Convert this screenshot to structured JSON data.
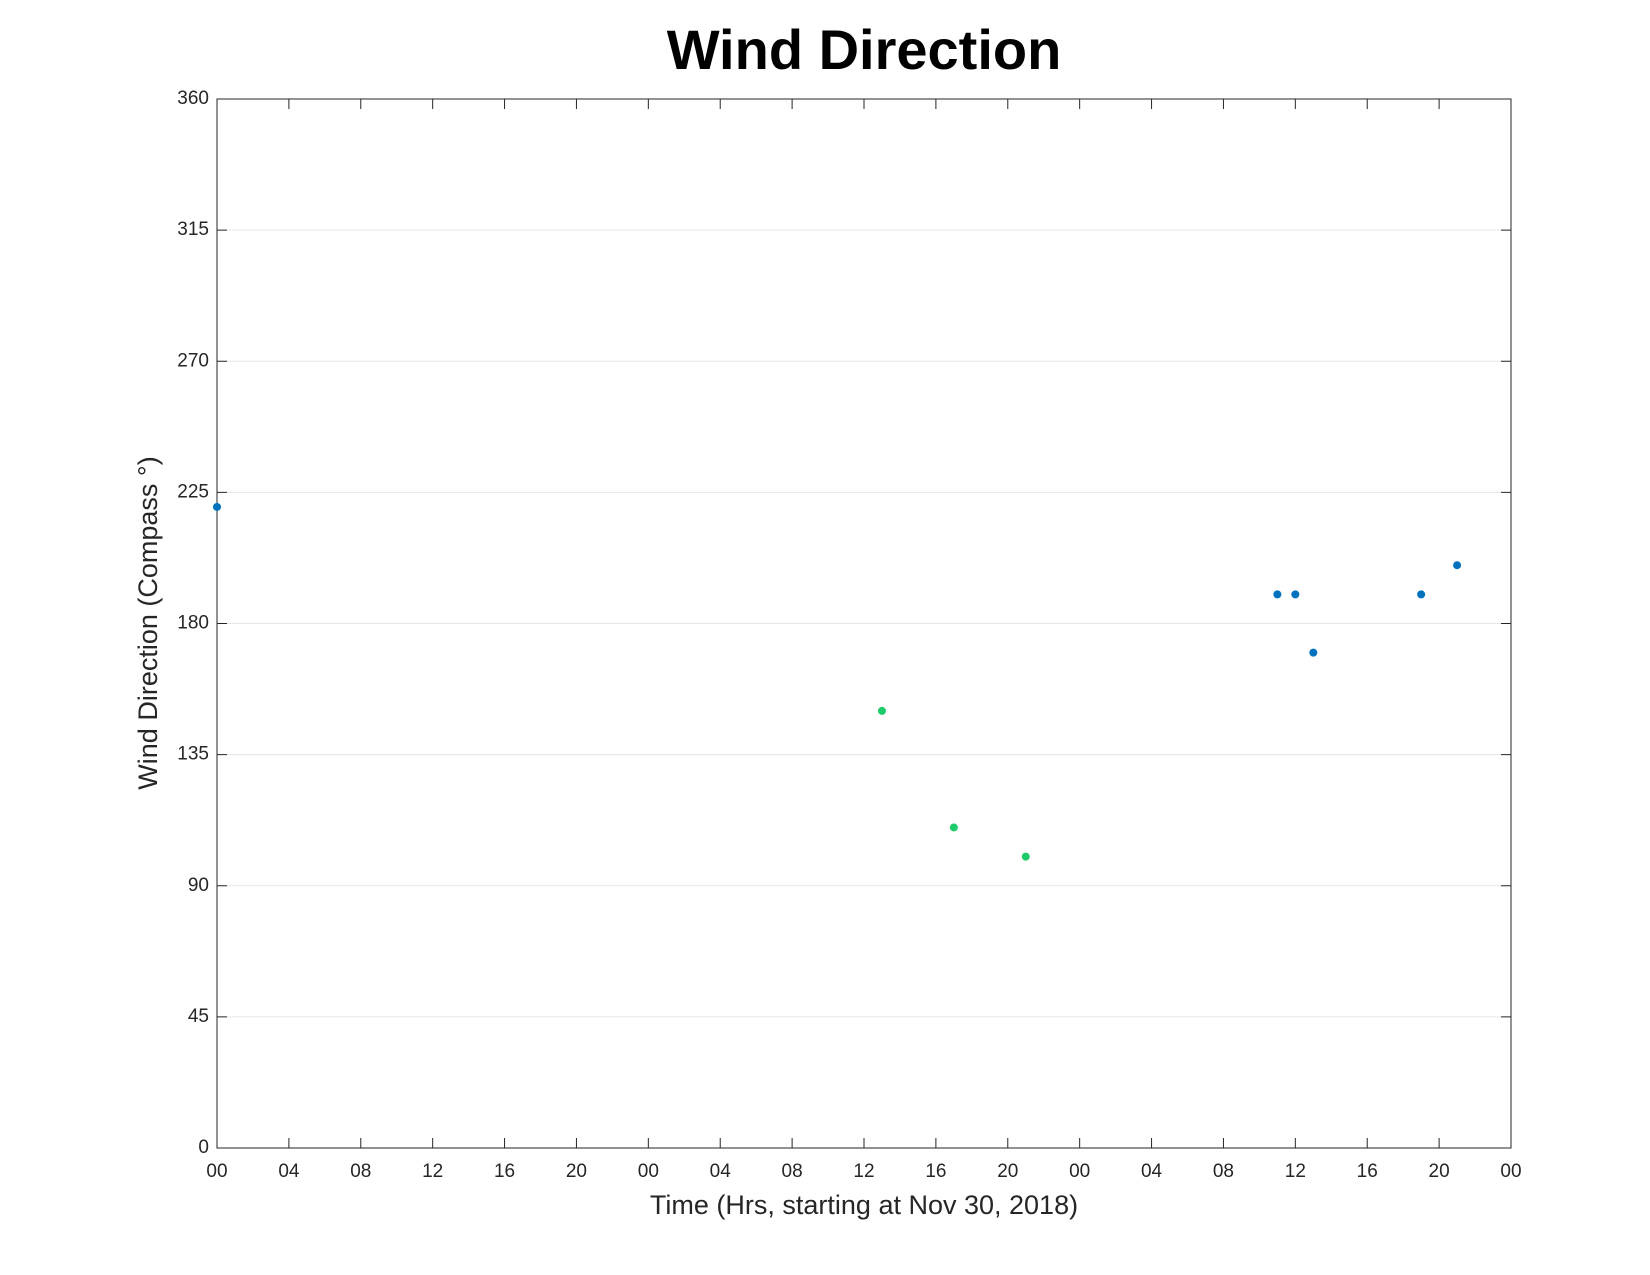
{
  "chart_data": {
    "type": "scatter",
    "title": "Wind Direction",
    "xlabel": "Time (Hrs, starting at Nov 30, 2018)",
    "ylabel": "Wind Direction (Compass °)",
    "xlim": [
      0,
      72
    ],
    "xticks": [
      {
        "value": 0,
        "label": "00"
      },
      {
        "value": 4,
        "label": "04"
      },
      {
        "value": 8,
        "label": "08"
      },
      12,
      16,
      20,
      {
        "value": 24,
        "label": "00"
      },
      {
        "value": 28,
        "label": "04"
      },
      {
        "value": 32,
        "label": "08"
      },
      {
        "value": 36,
        "label": "12"
      },
      {
        "value": 40,
        "label": "16"
      },
      {
        "value": 44,
        "label": "20"
      },
      {
        "value": 48,
        "label": "00"
      },
      {
        "value": 52,
        "label": "04"
      },
      {
        "value": 56,
        "label": "08"
      },
      {
        "value": 60,
        "label": "12"
      },
      {
        "value": 64,
        "label": "16"
      },
      {
        "value": 68,
        "label": "20"
      },
      {
        "value": 72,
        "label": "00"
      }
    ],
    "ylim": [
      0,
      360
    ],
    "yticks": [
      0,
      45,
      90,
      135,
      180,
      225,
      270,
      315,
      360
    ],
    "grid": "y",
    "series": [
      {
        "color": "#0072bd",
        "x": [
          0,
          59,
          60,
          61,
          67,
          69
        ],
        "values": [
          220,
          190,
          190,
          170,
          190,
          200
        ]
      },
      {
        "color": "#1ecb6a",
        "x": [
          37,
          41,
          45
        ],
        "values": [
          150,
          110,
          100
        ]
      }
    ]
  }
}
